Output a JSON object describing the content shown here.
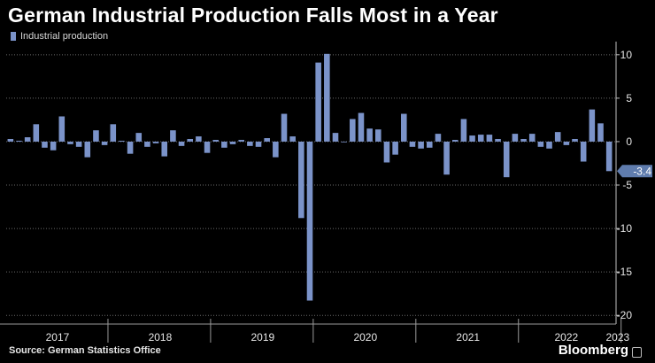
{
  "title": "German Industrial Production Falls Most in a Year",
  "source": "Source: German Statistics Office",
  "brand": "Bloomberg",
  "chart_data": {
    "type": "bar",
    "series": [
      {
        "name": "Industrial production",
        "color": "#7b93c9",
        "values": [
          0.3,
          0.1,
          0.5,
          2.0,
          -0.7,
          -1.0,
          2.9,
          -0.3,
          -0.6,
          -1.8,
          1.3,
          -0.4,
          2.0,
          0.1,
          -1.4,
          1.0,
          -0.6,
          -0.2,
          -1.7,
          1.3,
          -0.5,
          0.3,
          0.6,
          -1.3,
          0.2,
          -0.7,
          -0.3,
          0.2,
          -0.5,
          -0.6,
          0.4,
          -1.8,
          3.2,
          0.6,
          -8.8,
          -18.3,
          9.1,
          10.1,
          1.0,
          0.0,
          2.6,
          3.3,
          1.5,
          1.4,
          -2.4,
          -1.5,
          3.2,
          -0.6,
          -0.8,
          -0.7,
          0.9,
          -3.8,
          0.2,
          2.6,
          0.7,
          0.8,
          0.8,
          0.3,
          -4.1,
          0.9,
          0.3,
          0.9,
          -0.6,
          -0.8,
          1.1,
          -0.4,
          0.3,
          -2.3,
          3.7,
          2.1,
          -3.4
        ]
      }
    ],
    "x_start": "2017-01",
    "frequency": "monthly",
    "x_tick_labels": [
      "2017",
      "2018",
      "2019",
      "2020",
      "2021",
      "2022",
      "2023"
    ],
    "y_ticks": [
      10,
      5,
      0,
      -5,
      -10,
      -15,
      -20
    ],
    "y_tick_labels": [
      "10",
      "5",
      "0",
      "-5",
      "-10",
      "-15",
      "-20"
    ],
    "ylim": [
      -21,
      11
    ],
    "last_value_label": "-3.4",
    "grid": "horizontal dotted",
    "legend_position": "top-left",
    "axis_side": "right"
  }
}
